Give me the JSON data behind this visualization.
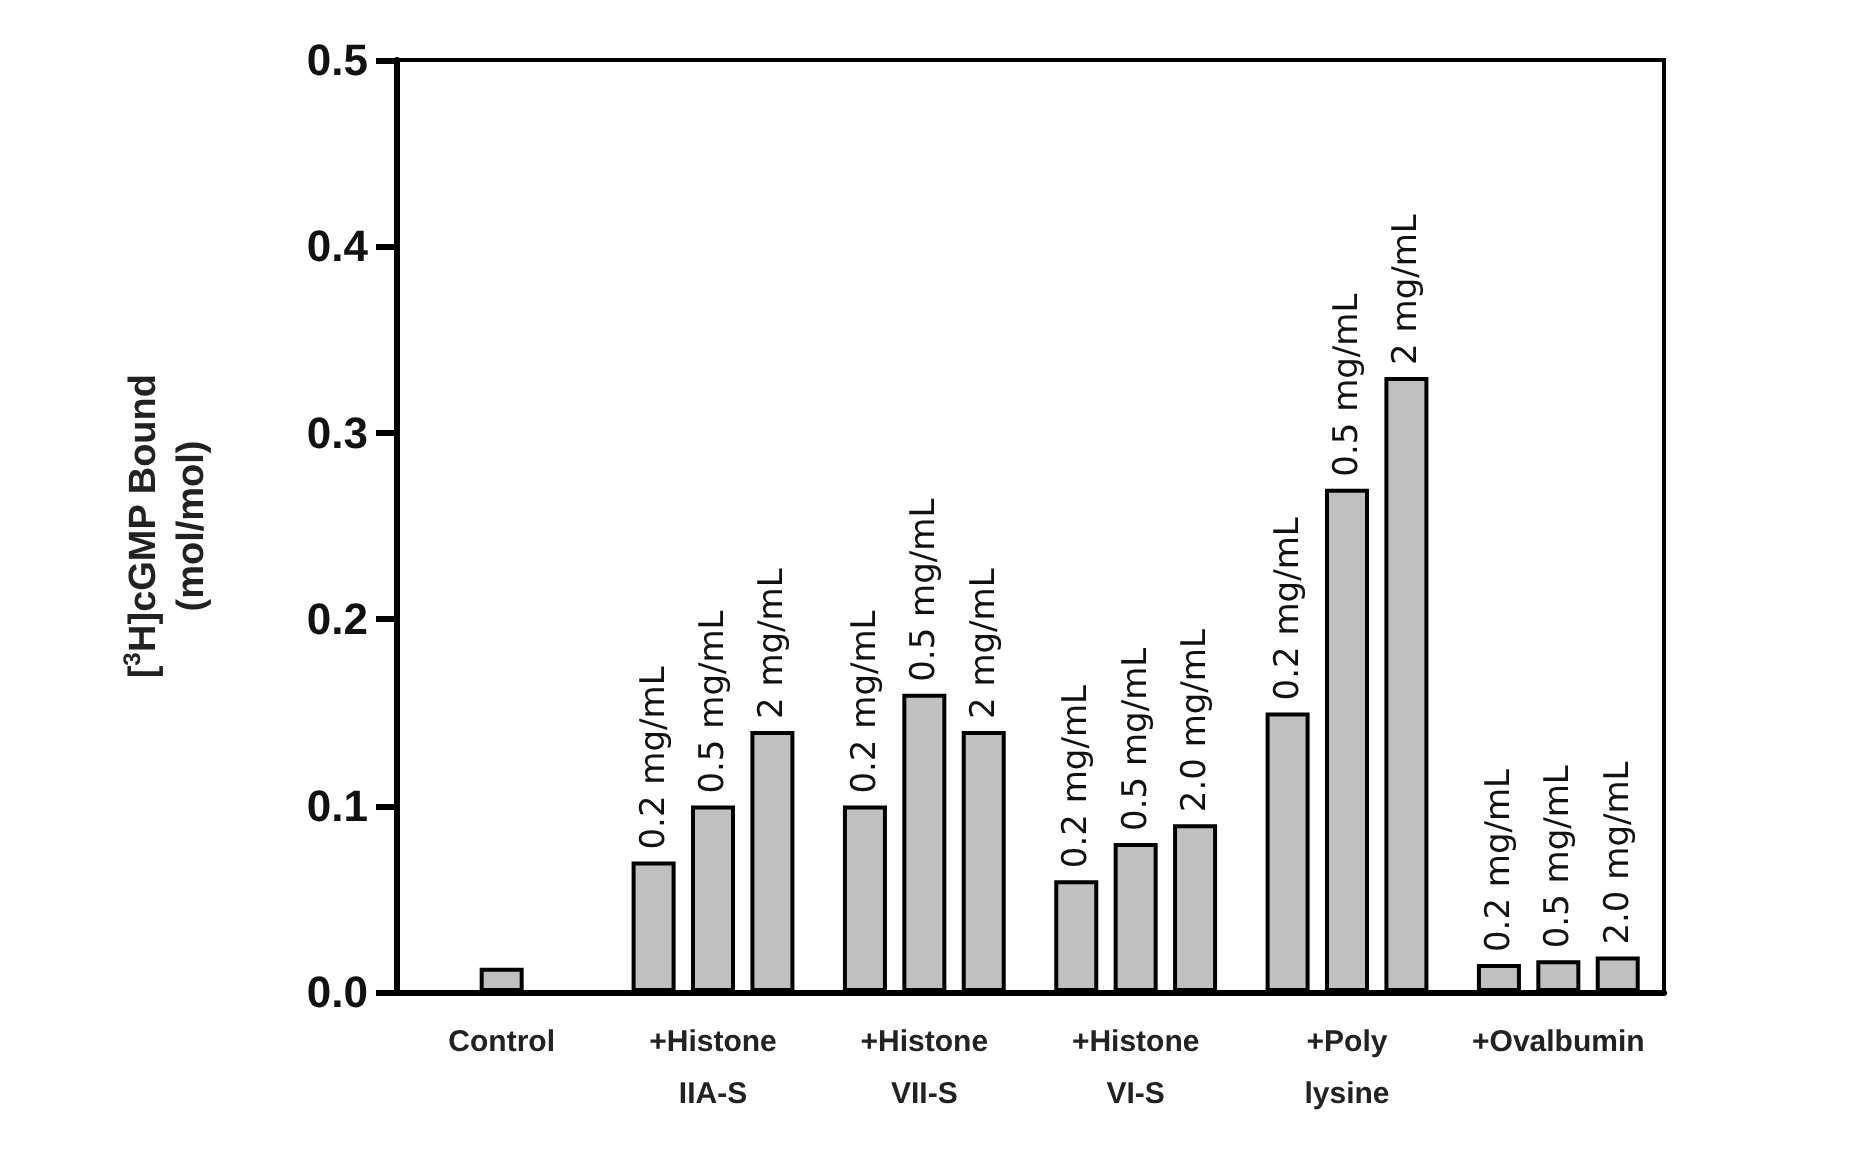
{
  "chart_data": {
    "type": "bar",
    "ylabel": "[$^{3}$H]cGMP Bound\n(mol/mol)",
    "categories": [
      "Control",
      "+Histone\nIIA-S",
      "+Histone\nVII-S",
      "+Histone\nVI-S",
      "+Poly\nlysine",
      "+Ovalbumin"
    ],
    "series": [
      {
        "color": "#c0c0c0",
        "values": [
          null,
          0.07,
          0.1,
          0.06,
          0.15,
          0.015
        ]
      },
      {
        "color": "#c0c0c0",
        "values": [
          0.013,
          0.1,
          0.16,
          0.08,
          0.27,
          0.017
        ]
      },
      {
        "color": "#c0c0c0",
        "values": [
          null,
          0.14,
          0.14,
          0.09,
          0.33,
          0.019
        ]
      }
    ],
    "annotations": [
      "0.2 mg/mL",
      "0.5 mg/mL",
      "2 mg/mL",
      "0.2 mg/mL",
      "0.5 mg/mL",
      "2 mg/mL",
      "0.2 mg/mL",
      "0.5 mg/mL",
      "2.0 mg/mL",
      "0.2 mg/mL",
      "0.5 mg/mL",
      "2 mg/mL",
      "0.2 mg/mL",
      "0.5 mg/mL",
      "2.0 mg/mL"
    ],
    "grid": false,
    "ylim": [
      0,
      0.5
    ],
    "yticks": [
      {
        "value": 0,
        "label": "0.0"
      },
      0.1,
      0.2,
      0.3,
      0.4,
      0.5
    ]
  }
}
